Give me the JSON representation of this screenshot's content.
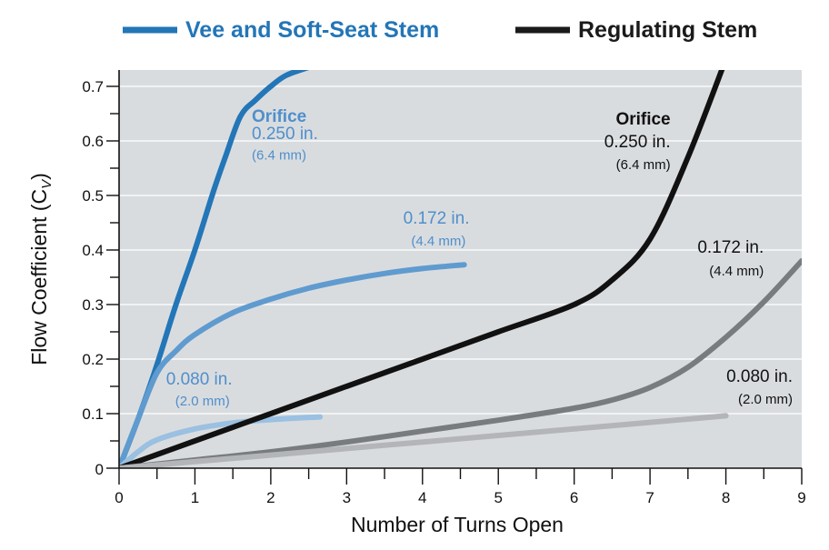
{
  "chart_data": {
    "type": "line",
    "xlabel": "Number of Turns Open",
    "ylabel_main": "Flow Coefficient (C",
    "ylabel_sub": "V",
    "ylabel_close": ")",
    "xlim": [
      0,
      9
    ],
    "ylim": [
      0,
      0.7
    ],
    "x_ticks": [
      "0",
      "1",
      "2",
      "3",
      "4",
      "5",
      "6",
      "7",
      "8",
      "9"
    ],
    "y_ticks": [
      "0",
      "0.1",
      "0.2",
      "0.3",
      "0.4",
      "0.5",
      "0.6",
      "0.7"
    ],
    "x_tick_values": [
      0,
      1,
      2,
      3,
      4,
      5,
      6,
      7,
      8,
      9
    ],
    "y_tick_values": [
      0,
      0.1,
      0.2,
      0.3,
      0.4,
      0.5,
      0.6,
      0.7
    ],
    "plot_background": "#d9dcdf",
    "legend": [
      {
        "label": "Vee and Soft-Seat Stem",
        "color": "#2376b7",
        "text_color": "#2376b7"
      },
      {
        "label": "Regulating Stem",
        "color": "#1a1a1a",
        "text_color": "#1a1a1a"
      }
    ],
    "series": [
      {
        "group": "vee",
        "color": "#2376b7",
        "x": [
          0,
          0.25,
          0.5,
          0.75,
          1.0,
          1.25,
          1.4,
          1.6,
          1.8,
          2.0,
          2.2,
          2.5
        ],
        "y": [
          0,
          0.09,
          0.19,
          0.3,
          0.4,
          0.51,
          0.57,
          0.645,
          0.675,
          0.7,
          0.72,
          0.735
        ]
      },
      {
        "group": "vee",
        "color": "#5f9bcf",
        "x": [
          0,
          0.25,
          0.5,
          0.75,
          1.0,
          1.5,
          2.0,
          2.5,
          3.0,
          3.5,
          4.0,
          4.55
        ],
        "y": [
          0,
          0.09,
          0.175,
          0.215,
          0.245,
          0.285,
          0.31,
          0.33,
          0.345,
          0.357,
          0.366,
          0.373
        ]
      },
      {
        "group": "vee",
        "color": "#9ac0e2",
        "x": [
          0,
          0.25,
          0.5,
          1.0,
          1.5,
          2.0,
          2.65
        ],
        "y": [
          0,
          0.03,
          0.052,
          0.072,
          0.083,
          0.089,
          0.094
        ]
      },
      {
        "group": "regulating",
        "color": "#111111",
        "x": [
          0,
          0.5,
          1,
          2,
          3,
          4,
          5,
          6,
          6.5,
          7.0,
          7.5,
          8.0
        ],
        "y": [
          0,
          0.025,
          0.05,
          0.1,
          0.15,
          0.2,
          0.25,
          0.3,
          0.345,
          0.42,
          0.57,
          0.75
        ]
      },
      {
        "group": "regulating",
        "color": "#787c7f",
        "x": [
          0,
          1,
          2,
          3,
          4,
          5,
          6,
          6.5,
          7,
          7.5,
          8,
          8.5,
          9
        ],
        "y": [
          0,
          0.015,
          0.03,
          0.048,
          0.068,
          0.088,
          0.11,
          0.125,
          0.148,
          0.185,
          0.24,
          0.305,
          0.38
        ]
      },
      {
        "group": "regulating",
        "color": "#b3b5b8",
        "x": [
          0,
          1,
          2,
          3,
          4,
          5,
          6,
          7,
          8
        ],
        "y": [
          0,
          0.012,
          0.024,
          0.036,
          0.048,
          0.06,
          0.072,
          0.084,
          0.096
        ]
      }
    ],
    "annotations": [
      {
        "text": "Orifice",
        "x": 1.75,
        "y": 0.635,
        "size": 19,
        "bold": true,
        "color": "#4f8fcb",
        "anchor": "start"
      },
      {
        "text": "0.250 in.",
        "x": 1.75,
        "y": 0.603,
        "size": 19,
        "bold": false,
        "color": "#4f8fcb",
        "anchor": "start"
      },
      {
        "text": "(6.4 mm)",
        "x": 1.75,
        "y": 0.566,
        "size": 15,
        "bold": false,
        "color": "#4f8fcb",
        "anchor": "start"
      },
      {
        "text": "0.172 in.",
        "x": 4.62,
        "y": 0.448,
        "size": 19,
        "bold": false,
        "color": "#4f8fcb",
        "anchor": "end"
      },
      {
        "text": "(4.4 mm)",
        "x": 4.57,
        "y": 0.408,
        "size": 15,
        "bold": false,
        "color": "#4f8fcb",
        "anchor": "end"
      },
      {
        "text": "0.080 in.",
        "x": 0.62,
        "y": 0.153,
        "size": 19,
        "bold": false,
        "color": "#4f8fcb",
        "anchor": "start"
      },
      {
        "text": "(2.0 mm)",
        "x": 0.74,
        "y": 0.115,
        "size": 15,
        "bold": false,
        "color": "#4f8fcb",
        "anchor": "start"
      },
      {
        "text": "Orifice",
        "x": 7.27,
        "y": 0.63,
        "size": 19,
        "bold": true,
        "color": "#111111",
        "anchor": "end"
      },
      {
        "text": "0.250 in.",
        "x": 7.27,
        "y": 0.588,
        "size": 19,
        "bold": false,
        "color": "#111111",
        "anchor": "end"
      },
      {
        "text": "(6.4 mm)",
        "x": 7.27,
        "y": 0.548,
        "size": 15,
        "bold": false,
        "color": "#111111",
        "anchor": "end"
      },
      {
        "text": "0.172 in.",
        "x": 8.5,
        "y": 0.395,
        "size": 19,
        "bold": false,
        "color": "#111111",
        "anchor": "end"
      },
      {
        "text": "(4.4 mm)",
        "x": 8.5,
        "y": 0.353,
        "size": 15,
        "bold": false,
        "color": "#111111",
        "anchor": "end"
      },
      {
        "text": "0.080 in.",
        "x": 8.88,
        "y": 0.158,
        "size": 19,
        "bold": false,
        "color": "#111111",
        "anchor": "end"
      },
      {
        "text": "(2.0 mm)",
        "x": 8.88,
        "y": 0.118,
        "size": 15,
        "bold": false,
        "color": "#111111",
        "anchor": "end"
      }
    ]
  }
}
